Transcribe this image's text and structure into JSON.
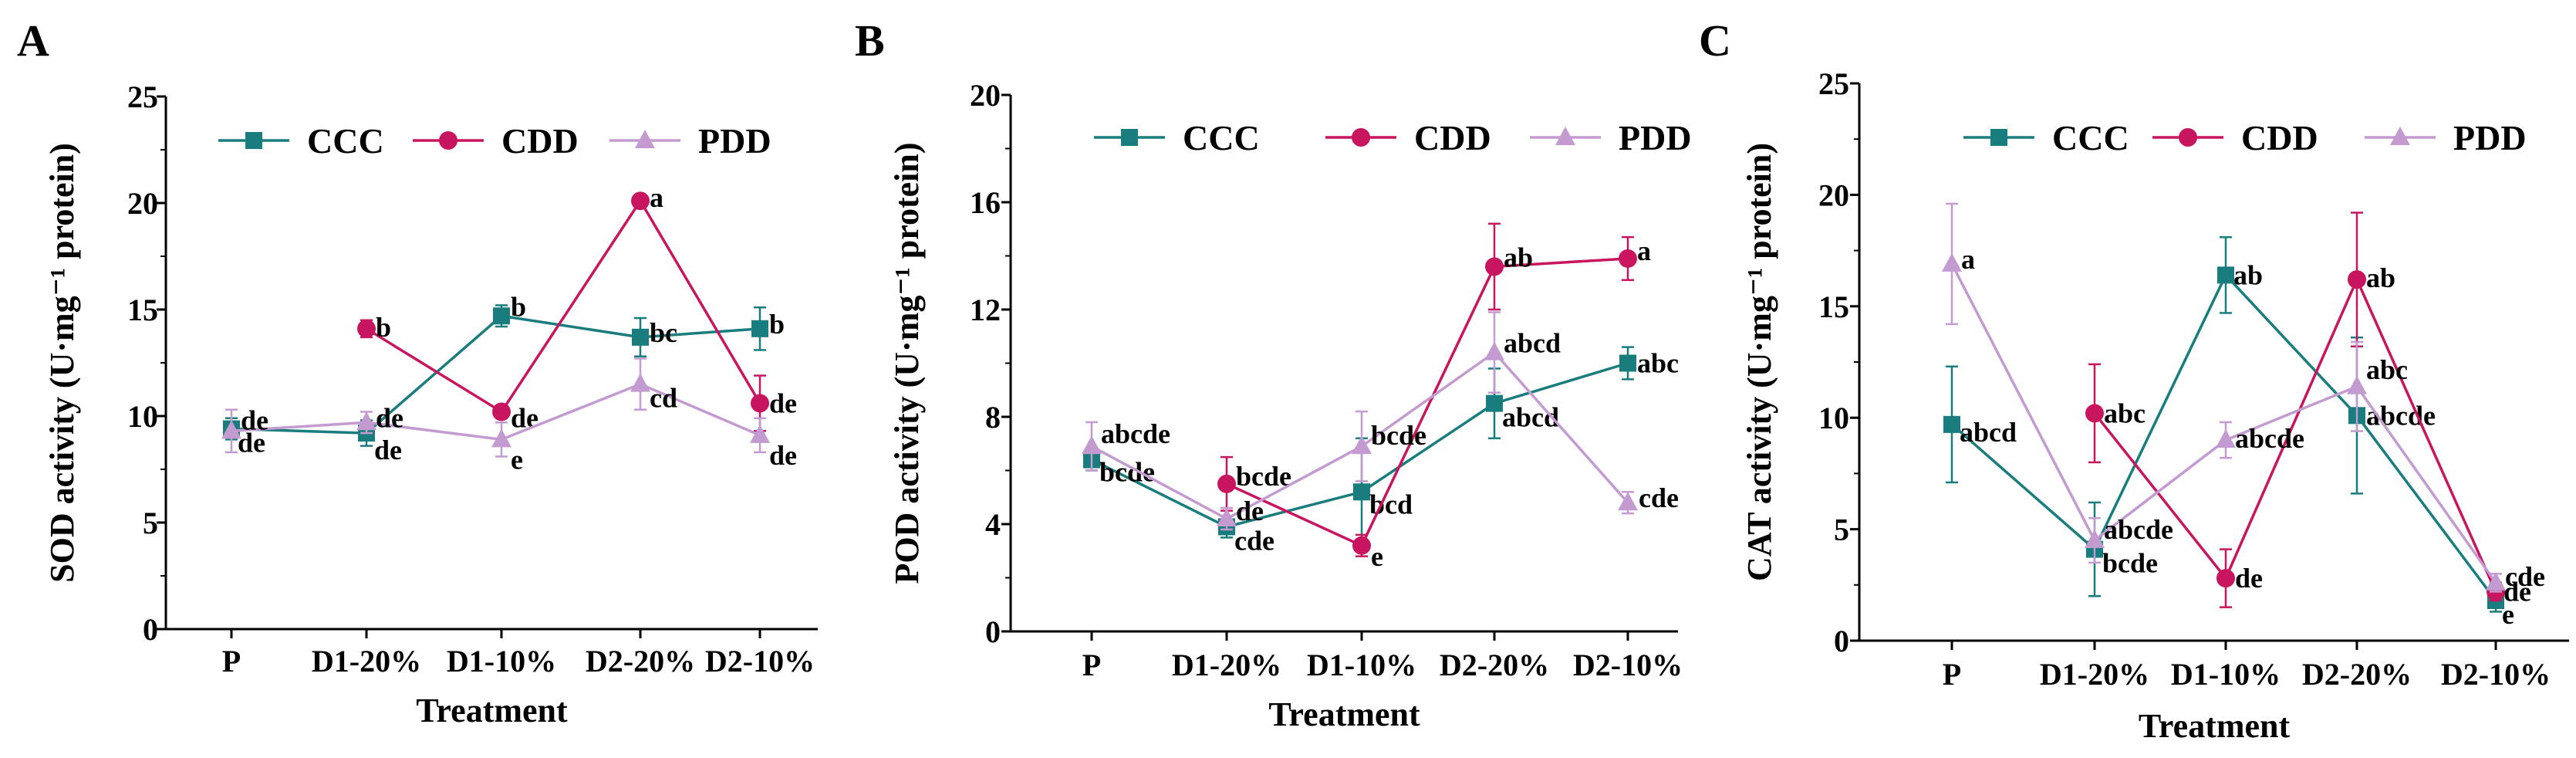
{
  "colors": {
    "CCC": "#1a7d7d",
    "CDD": "#c8155f",
    "PDD": "#c39bd1",
    "axis": "#000000"
  },
  "chart_data": [
    {
      "type": "line",
      "panel": "A",
      "xlabel": "Treatment",
      "ylabel": "SOD activity (U·mg⁻¹ protein)",
      "categories": [
        "P",
        "D1-20%",
        "D1-10%",
        "D2-20%",
        "D2-10%"
      ],
      "ylim": [
        0,
        25
      ],
      "yticks": [
        "0",
        "5",
        "10",
        "15",
        "20",
        "25"
      ],
      "legend": [
        "CCC",
        "CDD",
        "PDD"
      ],
      "series": [
        {
          "name": "CCC",
          "marker": "square",
          "values": [
            9.4,
            9.2,
            14.7,
            13.7,
            14.1
          ],
          "errors": [
            0.5,
            0.6,
            0.5,
            0.9,
            1.0
          ],
          "labels": [
            "de",
            "de",
            "b",
            "bc",
            "b"
          ]
        },
        {
          "name": "CDD",
          "marker": "circle",
          "values": [
            null,
            14.1,
            10.2,
            20.1,
            10.6
          ],
          "errors": [
            0,
            0.4,
            0.3,
            0.2,
            1.3
          ],
          "labels": [
            "",
            "b",
            "de",
            "a",
            "de"
          ]
        },
        {
          "name": "PDD",
          "marker": "triangle",
          "values": [
            9.3,
            9.7,
            8.9,
            11.5,
            9.1
          ],
          "errors": [
            1.0,
            0.5,
            0.8,
            1.2,
            0.8
          ],
          "labels": [
            "de",
            "de",
            "e",
            "cd",
            "de"
          ]
        }
      ]
    },
    {
      "type": "line",
      "panel": "B",
      "xlabel": "Treatment",
      "ylabel": "POD activity (U·mg⁻¹ protein)",
      "categories": [
        "P",
        "D1-20%",
        "D1-10%",
        "D2-20%",
        "D2-10%"
      ],
      "ylim": [
        0,
        20
      ],
      "yticks": [
        "0",
        "4",
        "8",
        "12",
        "16",
        "20"
      ],
      "legend": [
        "CCC",
        "CDD",
        "PDD"
      ],
      "series": [
        {
          "name": "CCC",
          "marker": "square",
          "values": [
            6.4,
            3.9,
            5.2,
            8.5,
            10.0
          ],
          "errors": [
            0.4,
            0.4,
            2.0,
            1.3,
            0.6
          ],
          "labels": [
            "bcde",
            "cde",
            "bcd",
            "abcd",
            "abc"
          ]
        },
        {
          "name": "CDD",
          "marker": "circle",
          "values": [
            null,
            5.5,
            3.2,
            13.6,
            13.9
          ],
          "errors": [
            0,
            1.0,
            0.4,
            1.6,
            0.8
          ],
          "labels": [
            "",
            "bcde",
            "e",
            "ab",
            "a"
          ]
        },
        {
          "name": "PDD",
          "marker": "triangle",
          "values": [
            6.9,
            4.2,
            6.9,
            10.4,
            4.8
          ],
          "errors": [
            0.9,
            0.4,
            1.3,
            1.5,
            0.4
          ],
          "labels": [
            "abcde",
            "de",
            "bcde",
            "abcd",
            "cde"
          ]
        }
      ]
    },
    {
      "type": "line",
      "panel": "C",
      "xlabel": "Treatment",
      "ylabel": "CAT activity (U·mg⁻¹ protein)",
      "categories": [
        "P",
        "D1-20%",
        "D1-10%",
        "D2-20%",
        "D2-10%"
      ],
      "ylim": [
        0,
        25
      ],
      "yticks": [
        "0",
        "5",
        "10",
        "15",
        "20",
        "25"
      ],
      "legend": [
        "CCC",
        "CDD",
        "PDD"
      ],
      "series": [
        {
          "name": "CCC",
          "marker": "square",
          "values": [
            9.7,
            4.1,
            16.4,
            10.1,
            1.8
          ],
          "errors": [
            2.6,
            2.1,
            1.7,
            3.5,
            0.5
          ],
          "labels": [
            "abcd",
            "bcde",
            "ab",
            "abcde",
            "e"
          ]
        },
        {
          "name": "CDD",
          "marker": "circle",
          "values": [
            null,
            10.2,
            2.8,
            16.2,
            2.2
          ],
          "errors": [
            0,
            2.2,
            1.3,
            3.0,
            0.4
          ],
          "labels": [
            "",
            "abc",
            "de",
            "ab",
            "de"
          ]
        },
        {
          "name": "PDD",
          "marker": "triangle",
          "values": [
            16.9,
            4.5,
            9.0,
            11.4,
            2.6
          ],
          "errors": [
            2.7,
            1.0,
            0.8,
            2.0,
            0.4
          ],
          "labels": [
            "a",
            "abcde",
            "abcde",
            "abc",
            "cde"
          ]
        }
      ]
    }
  ]
}
